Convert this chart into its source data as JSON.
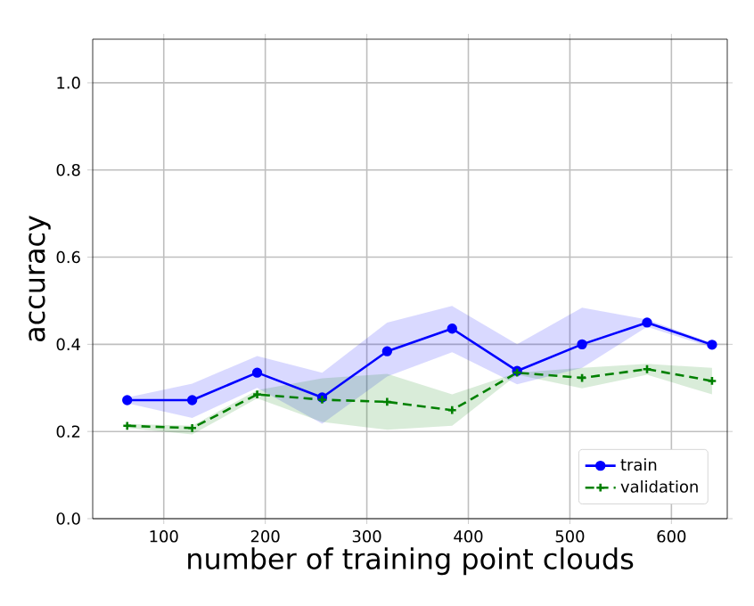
{
  "chart_data": {
    "type": "line",
    "xlabel": "number of training point clouds",
    "ylabel": "accuracy",
    "x": [
      64,
      128,
      192,
      256,
      320,
      384,
      448,
      512,
      576,
      640
    ],
    "series": [
      {
        "name": "train",
        "color": "#0000ff",
        "marker": "circle",
        "line_style": "solid",
        "values": [
          0.272,
          0.272,
          0.335,
          0.278,
          0.384,
          0.436,
          0.339,
          0.4,
          0.45,
          0.399
        ],
        "upper": [
          0.278,
          0.31,
          0.373,
          0.335,
          0.45,
          0.488,
          0.4,
          0.484,
          0.457,
          0.403
        ],
        "lower": [
          0.265,
          0.231,
          0.3,
          0.218,
          0.326,
          0.382,
          0.308,
          0.346,
          0.44,
          0.393
        ]
      },
      {
        "name": "validation",
        "color": "#008000",
        "marker": "cross",
        "line_style": "dashed",
        "values": [
          0.213,
          0.208,
          0.285,
          0.273,
          0.268,
          0.249,
          0.335,
          0.323,
          0.343,
          0.316
        ],
        "upper": [
          0.217,
          0.213,
          0.295,
          0.322,
          0.332,
          0.285,
          0.335,
          0.346,
          0.355,
          0.346
        ],
        "lower": [
          0.208,
          0.193,
          0.276,
          0.222,
          0.204,
          0.213,
          0.33,
          0.299,
          0.33,
          0.285
        ]
      }
    ],
    "xlim": [
      30,
      655
    ],
    "ylim": [
      0,
      1.1
    ],
    "xticks": [
      100,
      200,
      300,
      400,
      500,
      600
    ],
    "yticks": [
      {
        "value": 0,
        "label": "0.0"
      },
      0.2,
      0.4,
      0.6,
      0.8,
      {
        "value": 1,
        "label": "1.0"
      }
    ],
    "grid": true,
    "legend": "bottom right"
  }
}
